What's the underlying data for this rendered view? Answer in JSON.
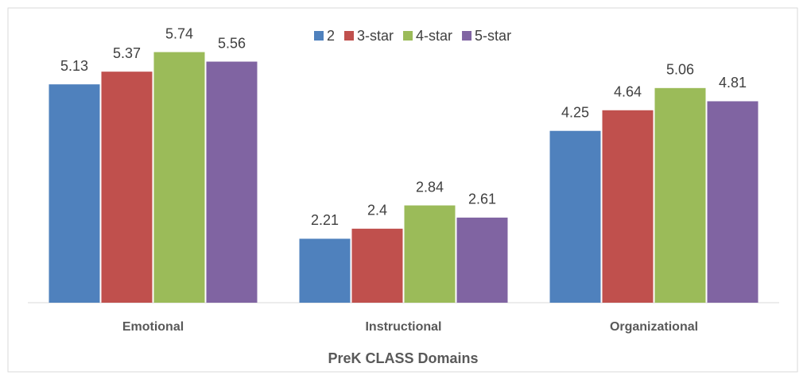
{
  "chart_data": {
    "type": "bar",
    "x_label": "PreK CLASS Domains",
    "categories": [
      "Emotional",
      "Instructional",
      "Organizational"
    ],
    "series": [
      {
        "name": "2",
        "color": "#4f81bd",
        "values": [
          5.13,
          2.21,
          4.25
        ]
      },
      {
        "name": "3-star",
        "color": "#c0504d",
        "values": [
          5.37,
          2.4,
          4.64
        ]
      },
      {
        "name": "4-star",
        "color": "#9bbb59",
        "values": [
          5.74,
          2.84,
          5.06
        ]
      },
      {
        "name": "5-star",
        "color": "#8064a2",
        "values": [
          5.56,
          2.61,
          4.81
        ]
      }
    ],
    "ylim": [
      1,
      6.5
    ],
    "legend": "top"
  }
}
